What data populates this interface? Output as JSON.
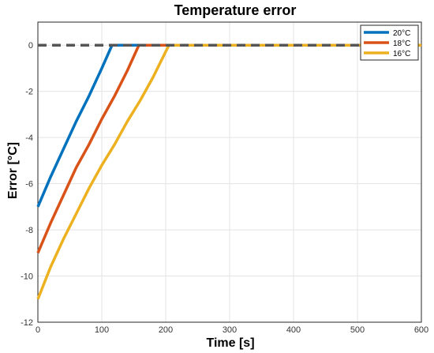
{
  "chart_data": {
    "type": "line",
    "title": "Temperature error",
    "xlabel": "Time [s]",
    "ylabel": "Error [°C]",
    "xlim": [
      0,
      600
    ],
    "ylim": [
      -12,
      1
    ],
    "xticks": [
      0,
      100,
      200,
      300,
      400,
      500,
      600
    ],
    "yticks": [
      0,
      -2,
      -4,
      -6,
      -8,
      -10,
      -12
    ],
    "grid": true,
    "legend_position": "top-right",
    "reference_line": {
      "y": 0,
      "color": "#555555",
      "style": "dashed"
    },
    "series": [
      {
        "name": "20°C",
        "color": "#0072BD",
        "x": [
          0,
          20,
          40,
          60,
          80,
          100,
          116,
          600
        ],
        "y": [
          -7.0,
          -5.7,
          -4.5,
          -3.3,
          -2.2,
          -1.0,
          0.0,
          0.0
        ]
      },
      {
        "name": "18°C",
        "color": "#D95319",
        "x": [
          0,
          20,
          40,
          60,
          80,
          100,
          120,
          140,
          158,
          600
        ],
        "y": [
          -9.0,
          -7.7,
          -6.5,
          -5.3,
          -4.3,
          -3.2,
          -2.2,
          -1.1,
          0.0,
          0.0
        ]
      },
      {
        "name": "16°C",
        "color": "#EDB120",
        "x": [
          0,
          20,
          40,
          60,
          80,
          100,
          120,
          140,
          160,
          180,
          205,
          600
        ],
        "y": [
          -11.0,
          -9.6,
          -8.4,
          -7.3,
          -6.2,
          -5.2,
          -4.3,
          -3.3,
          -2.4,
          -1.4,
          0.0,
          0.0
        ]
      }
    ]
  }
}
